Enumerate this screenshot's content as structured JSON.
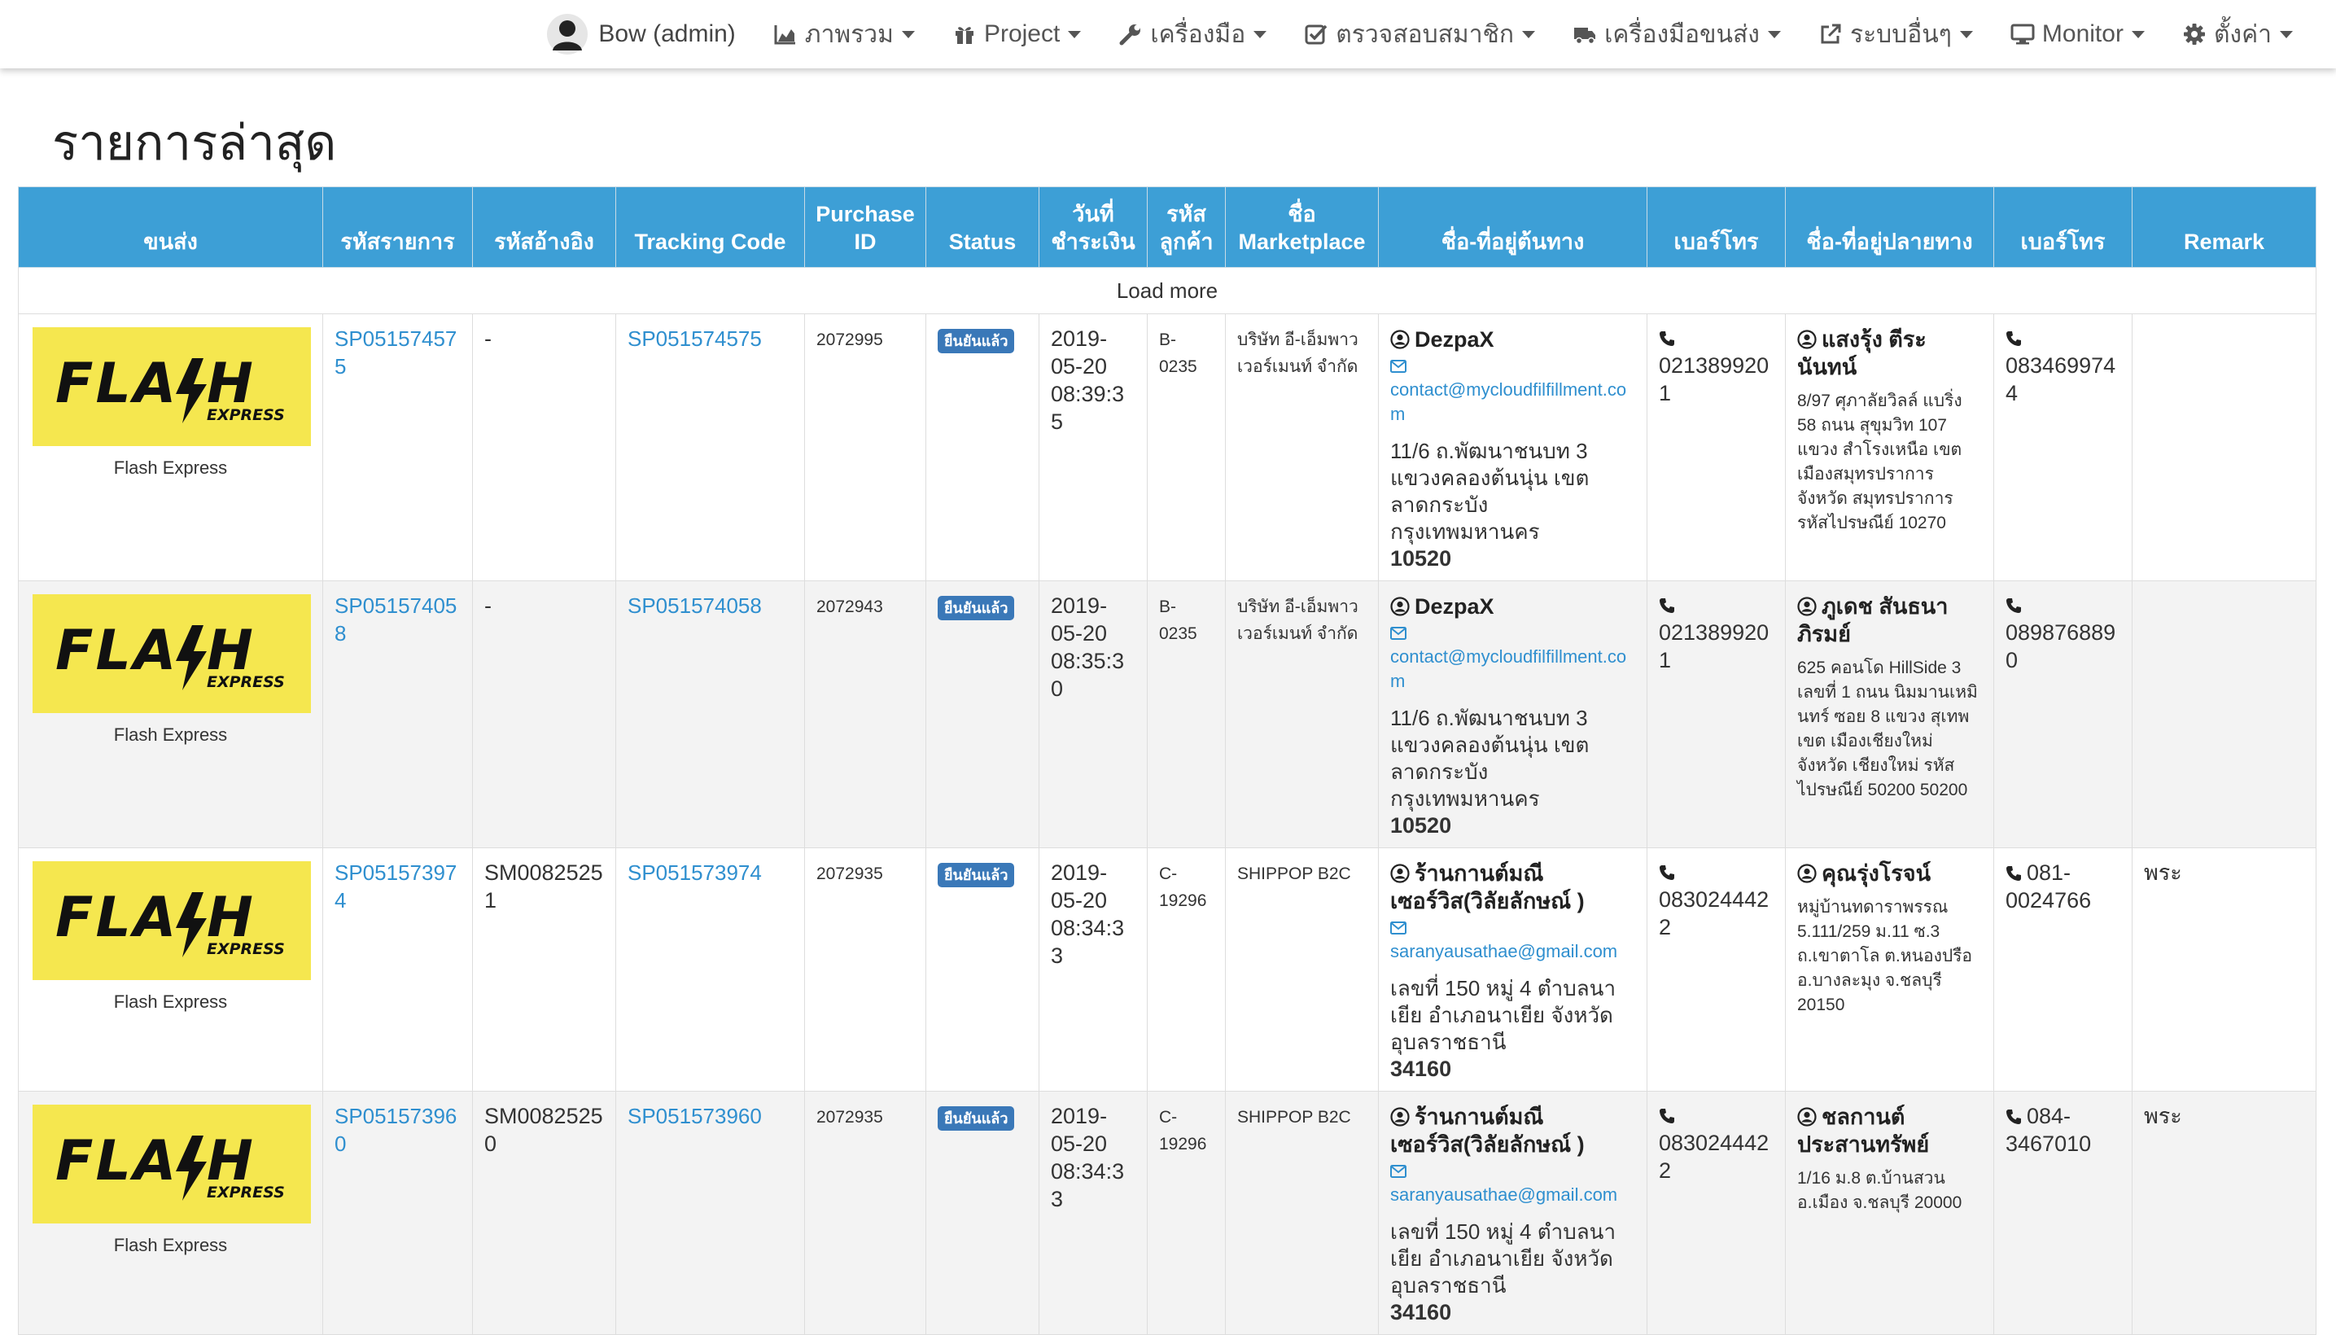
{
  "nav": {
    "user": "Bow (admin)",
    "items": [
      {
        "label": "ภาพรวม",
        "icon": "area-chart-icon"
      },
      {
        "label": "Project",
        "icon": "gift-icon"
      },
      {
        "label": "เครื่องมือ",
        "icon": "wrench-icon"
      },
      {
        "label": "ตรวจสอบสมาชิก",
        "icon": "check-square-icon"
      },
      {
        "label": "เครื่องมือขนส่ง",
        "icon": "truck-icon"
      },
      {
        "label": "ระบบอื่นๆ",
        "icon": "external-link-icon"
      },
      {
        "label": "Monitor",
        "icon": "desktop-icon"
      },
      {
        "label": "ตั้งค่า",
        "icon": "gear-icon"
      }
    ]
  },
  "page": {
    "title": "รายการล่าสุด"
  },
  "table": {
    "headers": {
      "carrier": "ขนส่ง",
      "order_code": "รหัสรายการ",
      "ref_code": "รหัสอ้างอิง",
      "tracking": "Tracking Code",
      "purchase_1": "Purchase",
      "purchase_2": "ID",
      "status": "Status",
      "paid_1": "วันที่",
      "paid_2": "ชำระเงิน",
      "customer_1": "รหัส",
      "customer_2": "ลูกค้า",
      "marketplace_1": "ชื่อ",
      "marketplace_2": "Marketplace",
      "origin": "ชื่อ-ที่อยู่ต้นทาง",
      "origin_phone": "เบอร์โทร",
      "dest": "ชื่อ-ที่อยู่ปลายทาง",
      "dest_phone": "เบอร์โทร",
      "remark": "Remark"
    },
    "load_more": "Load more",
    "rows": [
      {
        "carrier_name": "Flash Express",
        "order_code": "SP051574575",
        "ref_code": "-",
        "tracking": "SP051574575",
        "purchase_id": "2072995",
        "status": "ยืนยันแล้ว",
        "paid_date": "2019-05-20",
        "paid_time": "08:39:35",
        "customer_code": "B-0235",
        "marketplace": "บริษัท อี-เอ็มพาวเวอร์เมนท์ จำกัด",
        "origin_name": "DezpaX",
        "origin_email": "contact@mycloudfilfillment.com",
        "origin_addr": "11/6 ถ.พัฒนาชนบท 3 แขวงคลองต้นนุ่น เขตลาดกระบัง กรุงเทพมหานคร",
        "origin_zip": "10520",
        "origin_phone": "0213899201",
        "dest_name": "แสงรุ้ง ตีระนันทน์",
        "dest_addr": "8/97 ศุภาลัยวิลล์ แบริ่ง 58 ถนน สุขุมวิท 107 แขวง สำโรงเหนือ เขต เมืองสมุทรปราการ จังหวัด สมุทรปราการ รหัสไปรษณีย์ 10270",
        "dest_phone": "0834699744",
        "remark": ""
      },
      {
        "carrier_name": "Flash Express",
        "order_code": "SP051574058",
        "ref_code": "-",
        "tracking": "SP051574058",
        "purchase_id": "2072943",
        "status": "ยืนยันแล้ว",
        "paid_date": "2019-05-20",
        "paid_time": "08:35:30",
        "customer_code": "B-0235",
        "marketplace": "บริษัท อี-เอ็มพาวเวอร์เมนท์ จำกัด",
        "origin_name": "DezpaX",
        "origin_email": "contact@mycloudfilfillment.com",
        "origin_addr": "11/6 ถ.พัฒนาชนบท 3 แขวงคลองต้นนุ่น เขตลาดกระบัง กรุงเทพมหานคร",
        "origin_zip": "10520",
        "origin_phone": "0213899201",
        "dest_name": "ภูเดช สันธนาภิรมย์",
        "dest_addr": "625 คอนโด HillSide 3 เลขที่ 1 ถนน นิมมานเหมินทร์ ซอย 8 แขวง สุเทพ เขต เมืองเชียงใหม่ จังหวัด เชียงใหม่ รหัสไปรษณีย์ 50200 50200",
        "dest_phone": "0898768890",
        "remark": ""
      },
      {
        "carrier_name": "Flash Express",
        "order_code": "SP051573974",
        "ref_code": "SM00825251",
        "tracking": "SP051573974",
        "purchase_id": "2072935",
        "status": "ยืนยันแล้ว",
        "paid_date": "2019-05-20",
        "paid_time": "08:34:33",
        "customer_code": "C-19296",
        "marketplace": "SHIPPOP B2C",
        "origin_name": "ร้านกานต์มณีเซอร์วิส(วิลัยลักษณ์ )",
        "origin_email": "saranyausathae@gmail.com",
        "origin_addr": "เลขที่ 150 หมู่ 4 ตำบลนาเยีย อำเภอนาเยีย จังหวัดอุบลราชธานี",
        "origin_zip": "34160",
        "origin_phone": "0830244422",
        "dest_name": "คุณรุ่งโรจน์",
        "dest_addr": "หมู่บ้านทดาราพรรณ 5.111/259 ม.11 ซ.3 ถ.เขาตาโล ต.หนองปรือ อ.บางละมุง จ.ชลบุรี 20150",
        "dest_phone": "081-0024766",
        "remark": "พระ"
      },
      {
        "carrier_name": "Flash Express",
        "order_code": "SP051573960",
        "ref_code": "SM00825250",
        "tracking": "SP051573960",
        "purchase_id": "2072935",
        "status": "ยืนยันแล้ว",
        "paid_date": "2019-05-20",
        "paid_time": "08:34:33",
        "customer_code": "C-19296",
        "marketplace": "SHIPPOP B2C",
        "origin_name": "ร้านกานต์มณีเซอร์วิส(วิลัยลักษณ์ )",
        "origin_email": "saranyausathae@gmail.com",
        "origin_addr": "เลขที่ 150 หมู่ 4 ตำบลนาเยีย อำเภอนาเยีย จังหวัดอุบลราชธานี",
        "origin_zip": "34160",
        "origin_phone": "0830244422",
        "dest_name": "ชลกานต์ ประสานทรัพย์",
        "dest_addr": "1/16 ม.8 ต.บ้านสวน อ.เมือง จ.ชลบุรี 20000",
        "dest_phone": "084-3467010",
        "remark": "พระ"
      }
    ]
  }
}
